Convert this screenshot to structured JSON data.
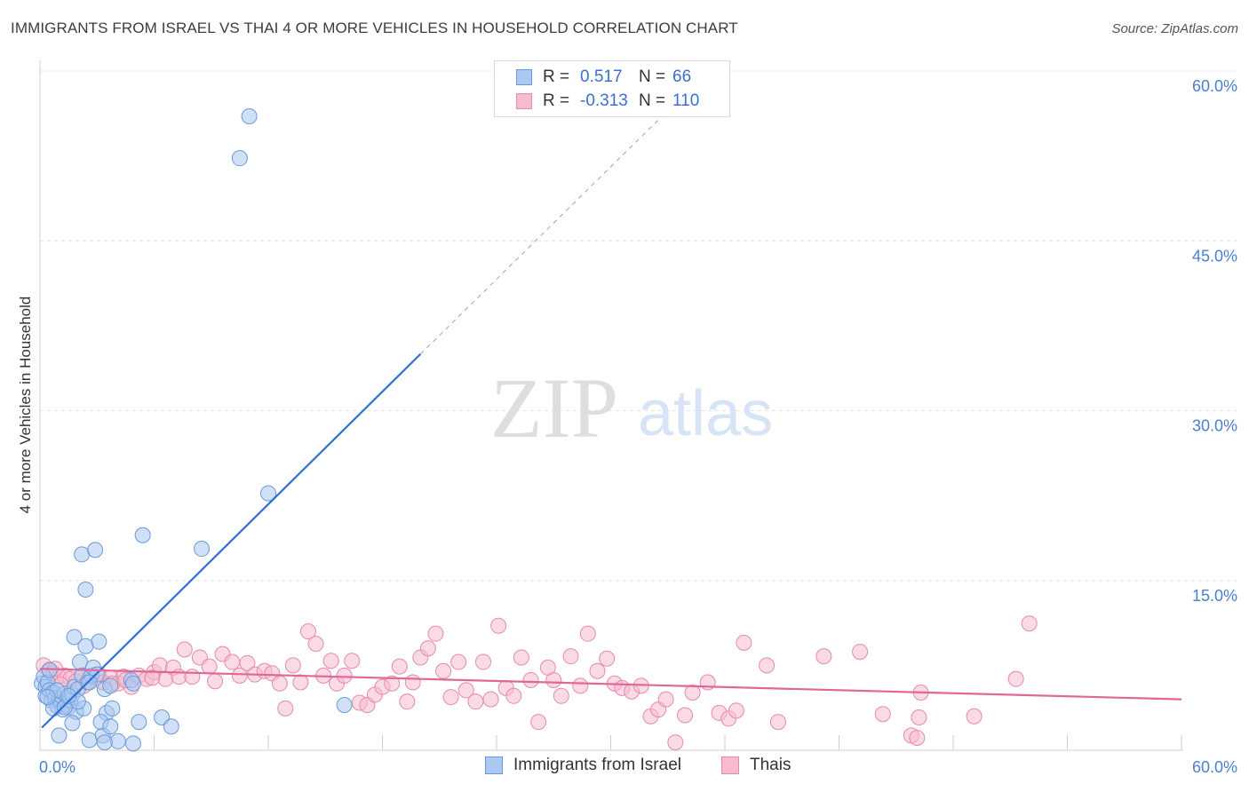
{
  "header": {
    "title": "IMMIGRANTS FROM ISRAEL VS THAI 4 OR MORE VEHICLES IN HOUSEHOLD CORRELATION CHART",
    "source": "Source: ZipAtlas.com"
  },
  "watermark": {
    "zip": "ZIP",
    "atlas": "atlas"
  },
  "legend": {
    "rows": [
      {
        "r_label": "R =",
        "r_value": "0.517",
        "n_label": "N =",
        "n_value": "66"
      },
      {
        "r_label": "R =",
        "r_value": "-0.313",
        "n_label": "N =",
        "n_value": "110"
      }
    ]
  },
  "bottom_legend": {
    "series1": "Immigrants from Israel",
    "series2": "Thais"
  },
  "colors": {
    "israel_fill": "#aac8f0",
    "israel_stroke": "#6a9ad8",
    "israel_line": "#2f6fd6",
    "thai_fill": "#f6bccd",
    "thai_stroke": "#e88aa8",
    "thai_line": "#e0679a",
    "grid": "#e2e2e2",
    "tick_text": "#4a7fd0"
  },
  "chart_data": {
    "type": "scatter",
    "title": "IMMIGRANTS FROM ISRAEL VS THAI 4 OR MORE VEHICLES IN HOUSEHOLD CORRELATION CHART",
    "xlabel": "",
    "ylabel": "4 or more Vehicles in Household",
    "xlim": [
      0,
      60
    ],
    "ylim": [
      0,
      60
    ],
    "x_tick_labels": [
      "0.0%",
      "60.0%"
    ],
    "y_ticks": [
      15,
      30,
      45,
      60
    ],
    "y_tick_labels": [
      "15.0%",
      "30.0%",
      "45.0%",
      "60.0%"
    ],
    "grid": true,
    "legend_position": "top-center",
    "series": [
      {
        "name": "Immigrants from Israel",
        "r": 0.517,
        "n": 66,
        "trend": {
          "x0": 0.1,
          "y0": 2.0,
          "x1": 20.0,
          "y1": 35.0,
          "dash_to_x": 33.0,
          "dash_to_y": 56.5
        },
        "points": [
          [
            0.1,
            5.9
          ],
          [
            0.2,
            6.5
          ],
          [
            0.3,
            5.6
          ],
          [
            0.3,
            4.8
          ],
          [
            0.4,
            6.0
          ],
          [
            0.5,
            5.3
          ],
          [
            0.6,
            4.4
          ],
          [
            0.7,
            5.1
          ],
          [
            0.8,
            4.6
          ],
          [
            0.9,
            3.9
          ],
          [
            1.0,
            4.5
          ],
          [
            1.1,
            4.2
          ],
          [
            1.2,
            3.6
          ],
          [
            1.3,
            5.0
          ],
          [
            1.4,
            4.0
          ],
          [
            1.5,
            3.8
          ],
          [
            1.6,
            4.4
          ],
          [
            1.7,
            4.9
          ],
          [
            1.8,
            5.6
          ],
          [
            1.9,
            3.4
          ],
          [
            2.0,
            5.4
          ],
          [
            2.1,
            7.8
          ],
          [
            2.2,
            6.6
          ],
          [
            2.3,
            3.7
          ],
          [
            2.5,
            6.0
          ],
          [
            2.7,
            6.6
          ],
          [
            2.8,
            7.3
          ],
          [
            3.0,
            6.7
          ],
          [
            3.1,
            9.6
          ],
          [
            3.4,
            5.4
          ],
          [
            3.5,
            3.3
          ],
          [
            3.7,
            5.7
          ],
          [
            1.8,
            10.0
          ],
          [
            2.4,
            9.2
          ],
          [
            2.4,
            14.2
          ],
          [
            2.2,
            17.3
          ],
          [
            2.9,
            17.7
          ],
          [
            5.4,
            19.0
          ],
          [
            8.5,
            17.8
          ],
          [
            12.0,
            22.7
          ],
          [
            10.5,
            52.3
          ],
          [
            11.0,
            56.0
          ],
          [
            1.0,
            1.3
          ],
          [
            2.6,
            0.9
          ],
          [
            3.3,
            1.3
          ],
          [
            4.1,
            0.8
          ],
          [
            3.2,
            2.5
          ],
          [
            3.7,
            2.1
          ],
          [
            3.4,
            0.7
          ],
          [
            1.7,
            2.4
          ],
          [
            5.2,
            2.5
          ],
          [
            6.4,
            2.9
          ],
          [
            6.9,
            2.1
          ],
          [
            16.0,
            4.0
          ],
          [
            4.9,
            0.6
          ],
          [
            3.8,
            3.7
          ],
          [
            0.7,
            3.7
          ],
          [
            1.3,
            3.8
          ],
          [
            2.0,
            4.3
          ],
          [
            0.5,
            7.1
          ],
          [
            0.9,
            5.3
          ],
          [
            1.5,
            4.8
          ],
          [
            4.8,
            6.2
          ],
          [
            4.9,
            5.9
          ],
          [
            2.6,
            6.0
          ],
          [
            0.4,
            4.7
          ]
        ]
      },
      {
        "name": "Thais",
        "r": -0.313,
        "n": 110,
        "trend": {
          "x0": 0.0,
          "y0": 7.2,
          "x1": 60.0,
          "y1": 4.5
        },
        "points": [
          [
            0.2,
            7.5
          ],
          [
            0.5,
            7.0
          ],
          [
            0.7,
            6.8
          ],
          [
            1.0,
            6.5
          ],
          [
            1.3,
            6.6
          ],
          [
            1.6,
            6.3
          ],
          [
            1.9,
            6.1
          ],
          [
            2.2,
            6.6
          ],
          [
            2.6,
            6.4
          ],
          [
            3.1,
            6.7
          ],
          [
            3.3,
            6.0
          ],
          [
            3.7,
            6.4
          ],
          [
            4.1,
            5.9
          ],
          [
            4.4,
            6.5
          ],
          [
            4.8,
            5.6
          ],
          [
            5.2,
            6.6
          ],
          [
            5.6,
            6.3
          ],
          [
            6.0,
            6.9
          ],
          [
            6.3,
            7.5
          ],
          [
            6.6,
            6.3
          ],
          [
            7.0,
            7.3
          ],
          [
            7.3,
            6.5
          ],
          [
            7.6,
            8.9
          ],
          [
            8.0,
            6.5
          ],
          [
            8.4,
            8.2
          ],
          [
            8.9,
            7.4
          ],
          [
            9.2,
            6.1
          ],
          [
            9.6,
            8.5
          ],
          [
            10.1,
            7.8
          ],
          [
            10.5,
            6.6
          ],
          [
            10.9,
            7.7
          ],
          [
            11.3,
            6.7
          ],
          [
            11.8,
            7.0
          ],
          [
            12.2,
            6.8
          ],
          [
            12.6,
            5.9
          ],
          [
            12.9,
            3.7
          ],
          [
            13.3,
            7.5
          ],
          [
            13.7,
            6.0
          ],
          [
            14.1,
            10.5
          ],
          [
            14.5,
            9.4
          ],
          [
            14.9,
            6.6
          ],
          [
            15.3,
            7.9
          ],
          [
            15.6,
            5.9
          ],
          [
            16.0,
            6.6
          ],
          [
            16.4,
            7.9
          ],
          [
            16.8,
            4.2
          ],
          [
            17.2,
            4.0
          ],
          [
            17.6,
            4.9
          ],
          [
            18.0,
            5.6
          ],
          [
            18.5,
            5.9
          ],
          [
            18.9,
            7.4
          ],
          [
            19.3,
            4.3
          ],
          [
            19.6,
            6.0
          ],
          [
            20.0,
            8.2
          ],
          [
            20.4,
            9.0
          ],
          [
            20.8,
            10.3
          ],
          [
            21.2,
            7.0
          ],
          [
            21.6,
            4.7
          ],
          [
            22.0,
            7.8
          ],
          [
            22.4,
            5.3
          ],
          [
            22.9,
            4.3
          ],
          [
            23.3,
            7.8
          ],
          [
            23.7,
            4.5
          ],
          [
            24.1,
            11.0
          ],
          [
            24.5,
            5.5
          ],
          [
            24.9,
            4.8
          ],
          [
            25.3,
            8.2
          ],
          [
            25.8,
            6.2
          ],
          [
            26.2,
            2.5
          ],
          [
            26.7,
            7.3
          ],
          [
            27.0,
            6.2
          ],
          [
            27.4,
            4.8
          ],
          [
            27.9,
            8.3
          ],
          [
            28.4,
            5.7
          ],
          [
            28.8,
            10.3
          ],
          [
            29.3,
            7.0
          ],
          [
            29.8,
            8.1
          ],
          [
            30.2,
            5.9
          ],
          [
            30.6,
            5.5
          ],
          [
            31.1,
            5.2
          ],
          [
            31.6,
            5.7
          ],
          [
            32.1,
            3.0
          ],
          [
            32.5,
            3.6
          ],
          [
            32.9,
            4.5
          ],
          [
            33.4,
            0.7
          ],
          [
            33.9,
            3.1
          ],
          [
            34.3,
            5.1
          ],
          [
            35.1,
            6.0
          ],
          [
            35.7,
            3.3
          ],
          [
            36.2,
            2.8
          ],
          [
            36.6,
            3.5
          ],
          [
            37.0,
            9.5
          ],
          [
            38.2,
            7.5
          ],
          [
            38.8,
            2.5
          ],
          [
            41.2,
            8.3
          ],
          [
            43.1,
            8.7
          ],
          [
            44.3,
            3.2
          ],
          [
            45.8,
            1.3
          ],
          [
            46.1,
            1.1
          ],
          [
            46.2,
            2.9
          ],
          [
            46.3,
            5.1
          ],
          [
            49.1,
            3.0
          ],
          [
            51.3,
            6.3
          ],
          [
            52.0,
            11.2
          ],
          [
            0.8,
            7.2
          ],
          [
            1.1,
            5.8
          ],
          [
            2.3,
            5.7
          ],
          [
            3.8,
            5.9
          ],
          [
            4.5,
            6.2
          ],
          [
            5.9,
            6.4
          ]
        ]
      }
    ]
  }
}
